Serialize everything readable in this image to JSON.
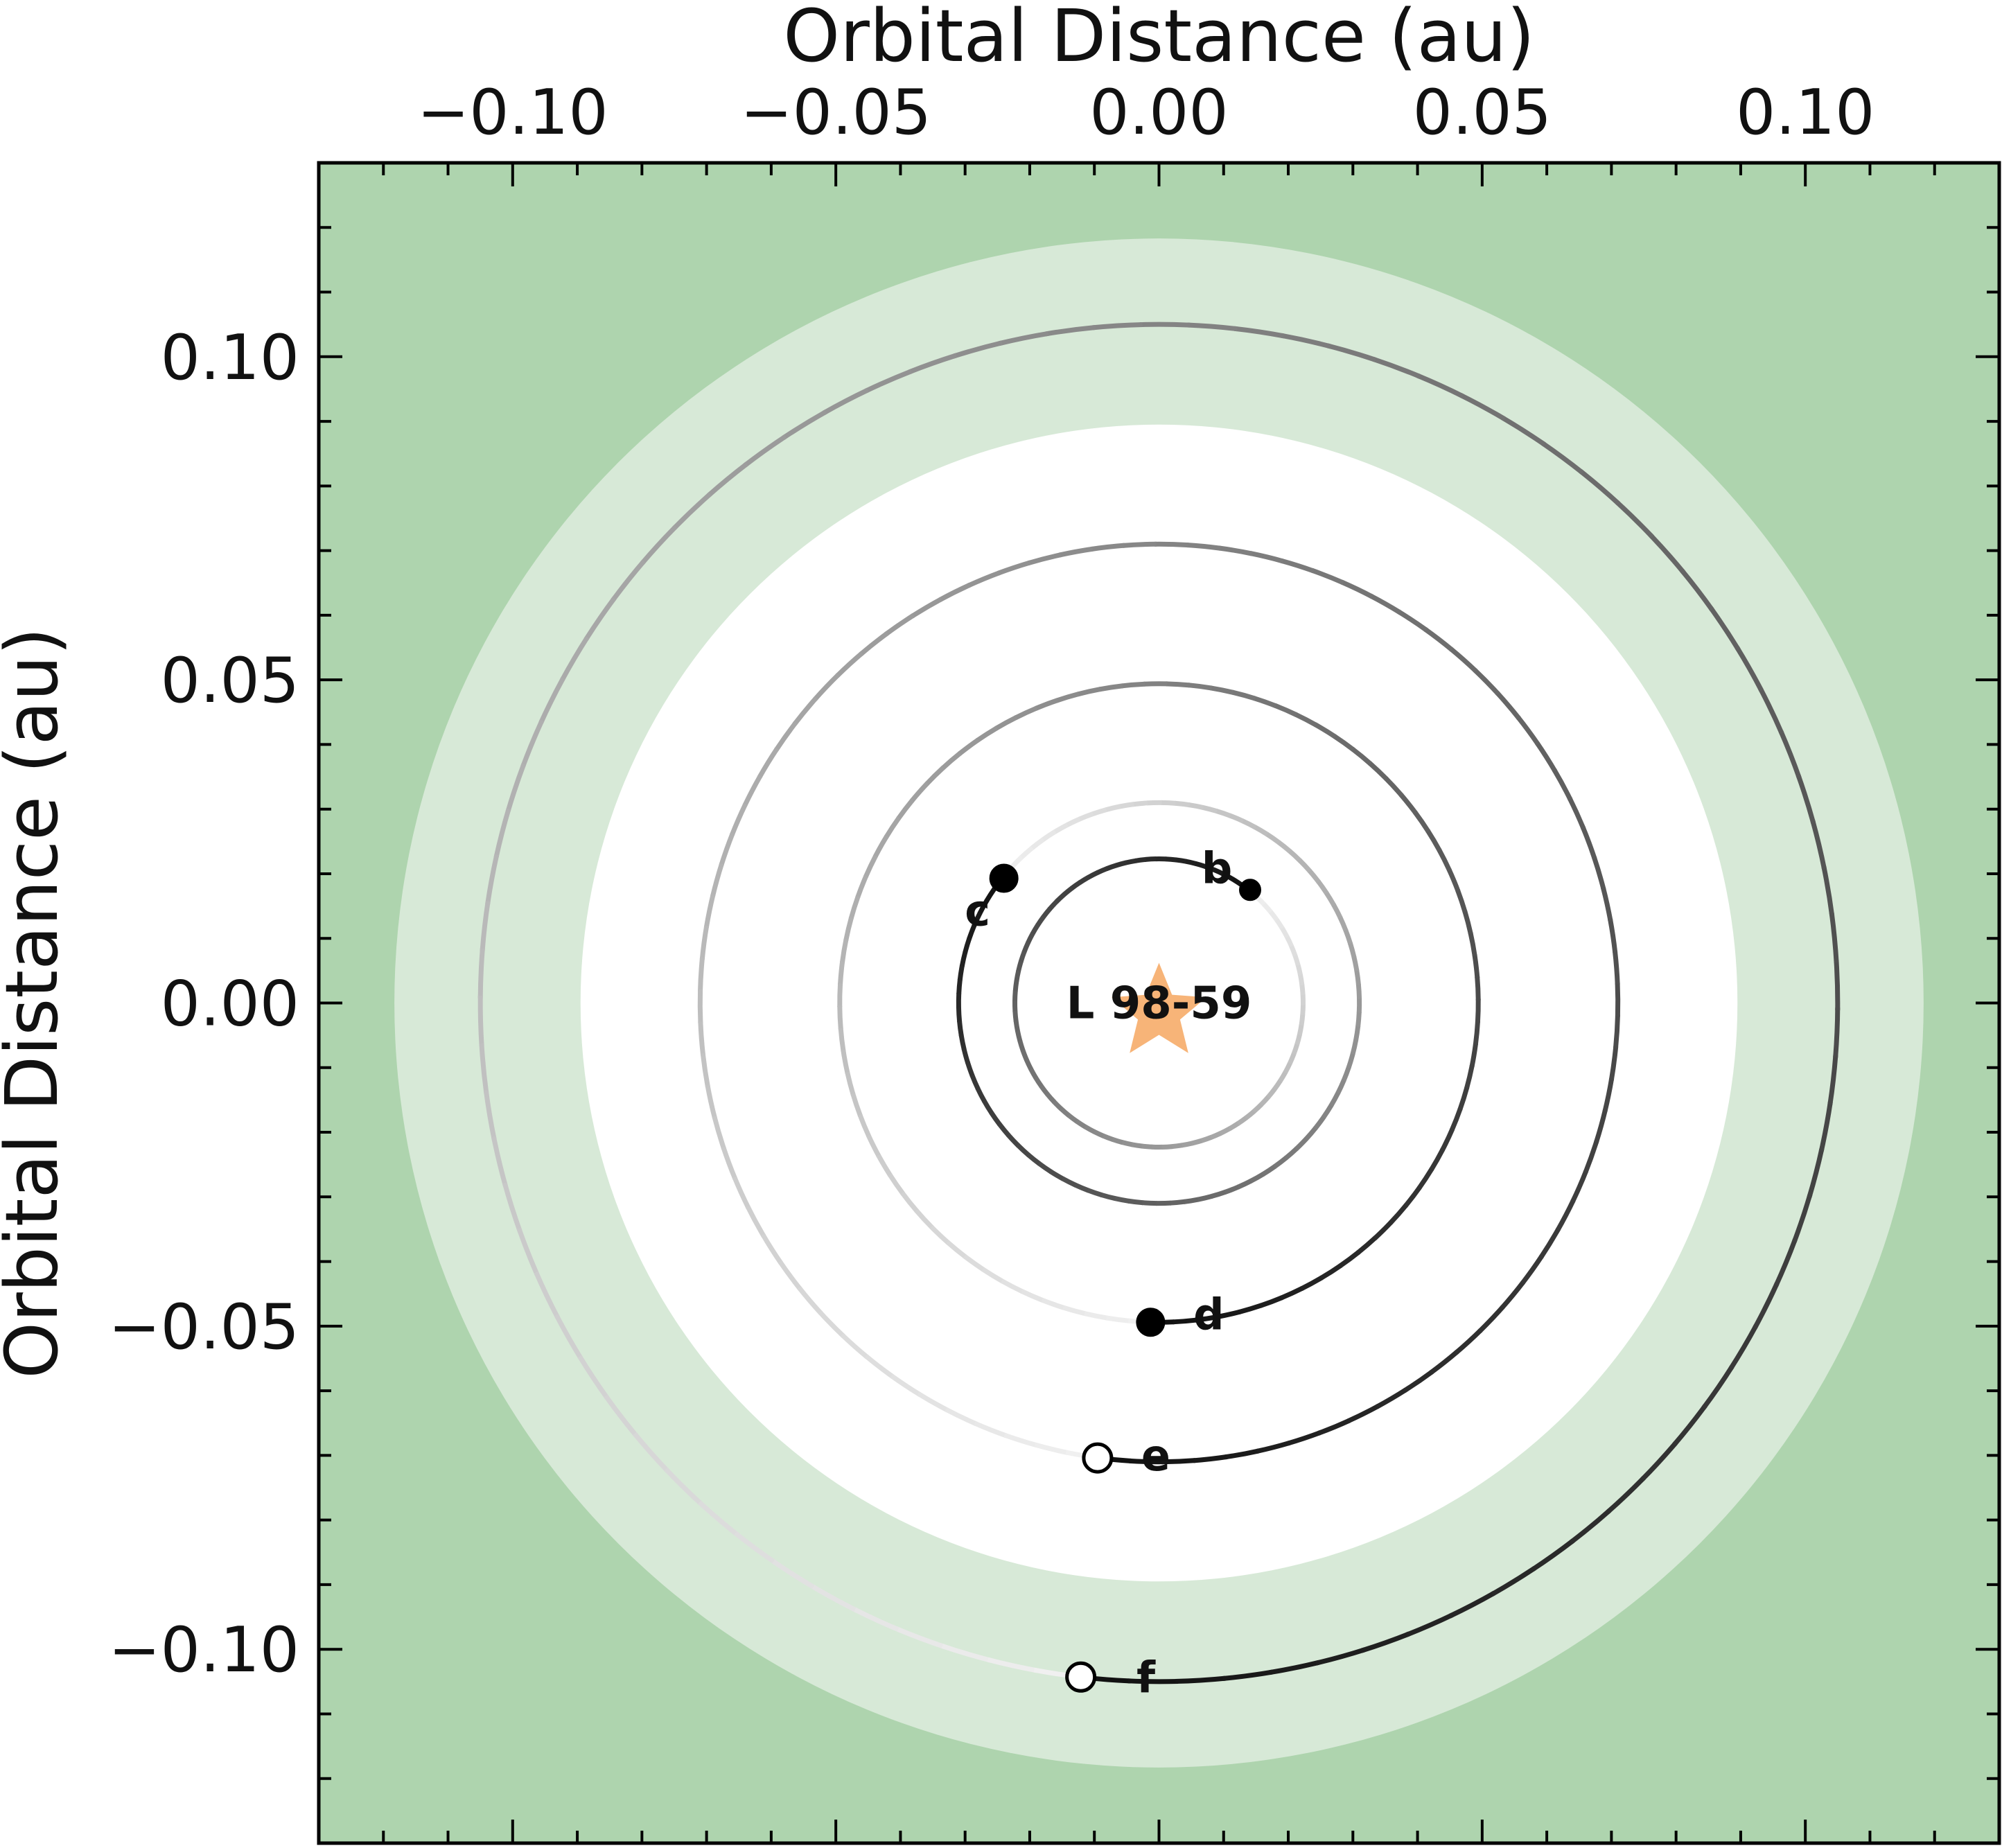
{
  "chart_data": {
    "type": "scatter",
    "subtype": "orbital-architecture",
    "xlabel": "Orbital Distance (au)",
    "ylabel": "Orbital Distance (au)",
    "xlim": [
      -0.13,
      0.13
    ],
    "ylim": [
      -0.13,
      0.13
    ],
    "x_ticks": [
      -0.1,
      -0.05,
      0.0,
      0.05,
      0.1
    ],
    "x_tick_labels": [
      "−0.10",
      "−0.05",
      "0.00",
      "0.05",
      "0.10"
    ],
    "y_ticks": [
      0.1,
      0.05,
      0.0,
      -0.05,
      -0.1
    ],
    "y_tick_labels": [
      "0.10",
      "0.05",
      "0.00",
      "−0.05",
      "−0.10"
    ],
    "x_axis_position": "top",
    "grid": false,
    "habitable_zone": {
      "optimistic_au": [
        0.0725,
        0.1183
      ],
      "conservative_au": [
        0.0895,
        0.0895
      ],
      "outer_color": "#aed4ae",
      "optimistic_color": "#d7e9d7",
      "conservative_color": "#ffffff"
    },
    "star": {
      "name": "L 98-59",
      "x": 0.0,
      "y": 0.0,
      "color": "#f7b478"
    },
    "planets": [
      {
        "name": "b",
        "orbit_au": 0.0223,
        "x": 0.0141,
        "y": 0.0175,
        "marker": "filled",
        "size": "small"
      },
      {
        "name": "c",
        "orbit_au": 0.031,
        "x": -0.024,
        "y": 0.0193,
        "marker": "filled",
        "size": "medium"
      },
      {
        "name": "d",
        "orbit_au": 0.0494,
        "x": -0.0013,
        "y": -0.0494,
        "marker": "filled",
        "size": "medium"
      },
      {
        "name": "e",
        "orbit_au": 0.071,
        "x": -0.0095,
        "y": -0.0704,
        "marker": "open",
        "size": "medium"
      },
      {
        "name": "f",
        "orbit_au": 0.105,
        "x": -0.0121,
        "y": -0.1043,
        "marker": "open",
        "size": "medium"
      }
    ],
    "colors": {
      "frame": "#000000",
      "orbit": "#111111",
      "filled_planet": "#000000",
      "open_planet": "#ffffff"
    }
  }
}
